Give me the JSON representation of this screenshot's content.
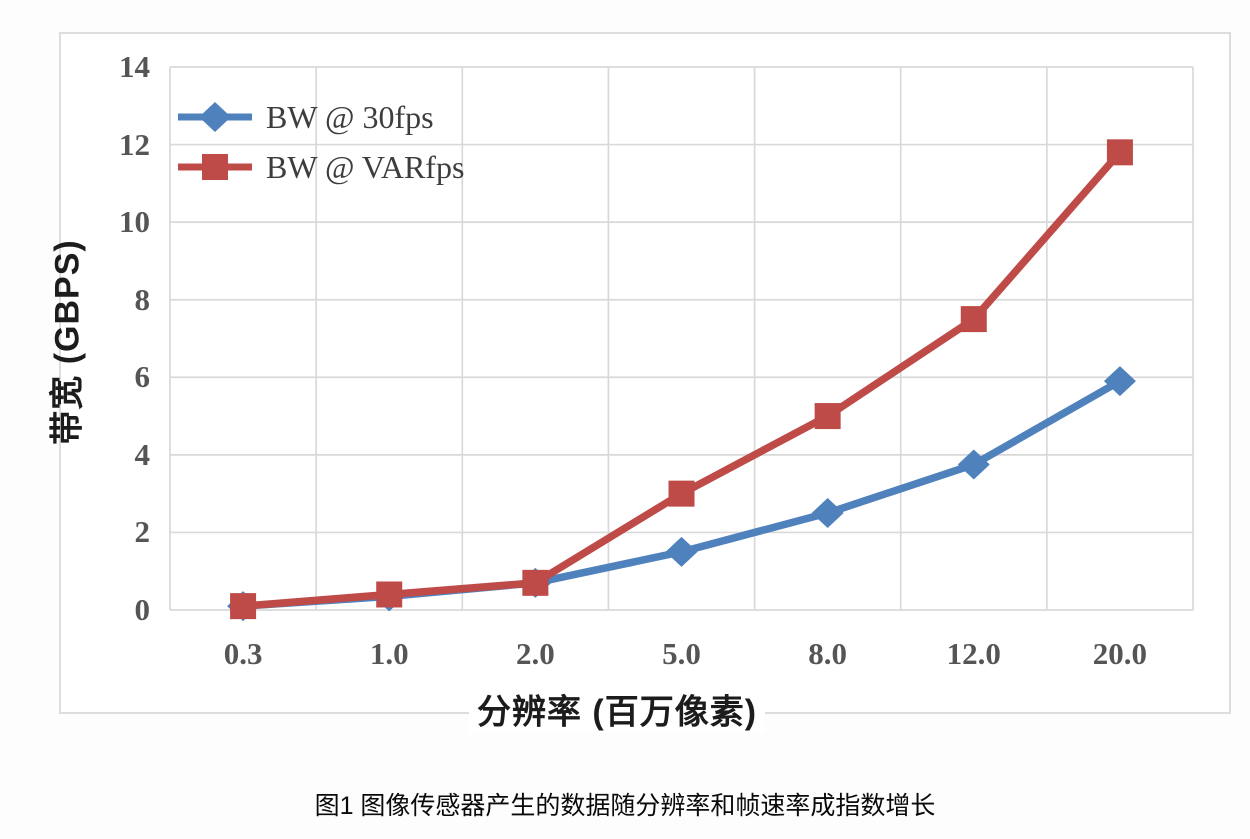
{
  "caption": "图1 图像传感器产生的数据随分辨率和帧速率成指数增长",
  "colors": {
    "series_blue": "#4F81BD",
    "series_red": "#BE4B48",
    "gridline": "#d9d9d9",
    "tick_label": "#555555",
    "axis_title": "#1c1c1c"
  },
  "chart_data": {
    "type": "line",
    "title": "",
    "xlabel": "分辨率 (百万像素)",
    "ylabel": "带宽 (GBPS)",
    "categories": [
      "0.3",
      "1.0",
      "2.0",
      "5.0",
      "8.0",
      "12.0",
      "20.0"
    ],
    "ylim": [
      0,
      14
    ],
    "yticks": [
      0,
      2,
      4,
      6,
      8,
      10,
      12,
      14
    ],
    "grid": true,
    "legend_position": "inside-top-left",
    "series": [
      {
        "name": "BW @ 30fps",
        "marker": "diamond",
        "color": "#4F81BD",
        "values": [
          0.1,
          0.35,
          0.7,
          1.5,
          2.5,
          3.75,
          5.9
        ]
      },
      {
        "name": "BW @ VARfps",
        "marker": "square",
        "color": "#BE4B48",
        "values": [
          0.1,
          0.4,
          0.7,
          3.0,
          5.0,
          7.5,
          11.8
        ]
      }
    ]
  }
}
